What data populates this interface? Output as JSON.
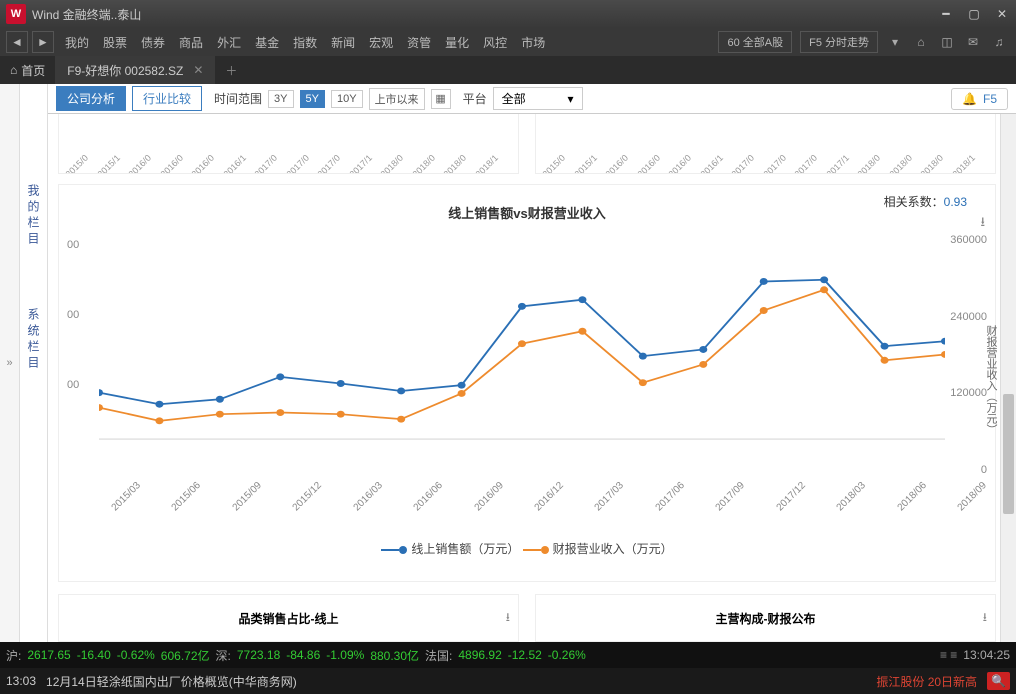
{
  "app": {
    "title": "Wind 金融终端..泰山",
    "logo": "W"
  },
  "menu": {
    "items": [
      "我的",
      "股票",
      "债券",
      "商品",
      "外汇",
      "基金",
      "指数",
      "新闻",
      "宏观",
      "资管",
      "量化",
      "风控",
      "市场"
    ],
    "btn1": "60 全部A股",
    "btn2": "F5 分时走势"
  },
  "tabs": {
    "home": "首页",
    "active": "F9-好想你 002582.SZ"
  },
  "sidebar": {
    "a": "我的栏目",
    "b": "系统栏目"
  },
  "toolbar": {
    "seg1": "公司分析",
    "seg2": "行业比较",
    "range_label": "时间范围",
    "r3y": "3Y",
    "r5y": "5Y",
    "r10y": "10Y",
    "rall": "上市以来",
    "plat_label": "平台",
    "plat_val": "全部",
    "f5": "F5"
  },
  "chart": {
    "title": "线上销售额vs财报营业收入",
    "corr_label": "相关系数：",
    "corr_val": "0.93",
    "right_axis_title": "财报营业收入（万元）",
    "categories": [
      "2015/03",
      "2015/06",
      "2015/09",
      "2015/12",
      "2016/03",
      "2016/06",
      "2016/09",
      "2016/12",
      "2017/03",
      "2017/06",
      "2017/09",
      "2017/12",
      "2018/03",
      "2018/06",
      "2018/09"
    ],
    "series1": {
      "name": "线上销售额（万元）",
      "color": "#2a6fb5",
      "vals": [
        56,
        42,
        48,
        75,
        67,
        58,
        65,
        160,
        168,
        100,
        108,
        190,
        192,
        112,
        118
      ]
    },
    "series2": {
      "name": "财报营业收入（万元）",
      "color": "#ee8b2d",
      "vals": [
        38,
        22,
        30,
        32,
        30,
        24,
        55,
        115,
        130,
        68,
        90,
        155,
        180,
        95,
        102
      ]
    },
    "ylim": [
      0,
      240
    ],
    "yrlim": [
      0,
      360000
    ],
    "yl_ticks": [
      "00",
      "00",
      "00"
    ],
    "yr_ticks": [
      "0",
      "120000",
      "240000",
      "360000"
    ]
  },
  "bcharts": {
    "a": "品类销售占比-线上",
    "b": "主营构成-财报公布"
  },
  "status": {
    "m1": {
      "lbl": "沪:",
      "v": "2617.65",
      "d": "-16.40",
      "p": "-0.62%",
      "vol": "606.72亿"
    },
    "m2": {
      "lbl": "深:",
      "v": "7723.18",
      "d": "-84.86",
      "p": "-1.09%",
      "vol": "880.30亿"
    },
    "m3": {
      "lbl": "法国:",
      "v": "4896.92",
      "d": "-12.52",
      "p": "-0.26%"
    },
    "time": "13:04:25"
  },
  "news": {
    "t": "13:03",
    "txt": "12月14日轻涂纸国内出厂价格概览(中华商务网)",
    "hot": "振江股份 20日新高"
  }
}
